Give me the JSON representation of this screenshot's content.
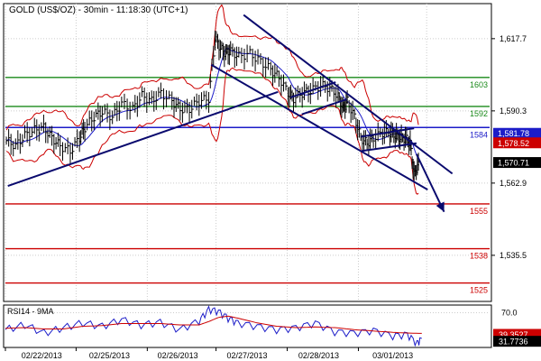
{
  "header": {
    "title": "GOLD (US$/OZ) - 30min - 11:18:30 (UTC+1)"
  },
  "chart_data": [
    {
      "type": "line",
      "title": "GOLD (US$/OZ) - 30min - 11:18:30 (UTC+1)",
      "y_axis": {
        "ticks": [
          "1,617.7",
          "1,590.3",
          "1,562.9",
          "1,535.5"
        ],
        "tick_values": [
          1617.7,
          1590.3,
          1562.9,
          1535.5
        ],
        "ylim": [
          1518,
          1631
        ],
        "position": "right"
      },
      "x_axis": {
        "ticks": [
          "02/22/2013",
          "02/25/2013",
          "02/26/2013",
          "02/27/2013",
          "02/28/2013",
          "03/01/2013"
        ],
        "xlim": [
          0,
          100
        ]
      },
      "horizontal_levels": [
        {
          "label": "1603",
          "value": 1603,
          "color": "#1a8a1a"
        },
        {
          "label": "1592",
          "value": 1592,
          "color": "#1a8a1a"
        },
        {
          "label": "1584",
          "value": 1584,
          "color": "#1c1cc8"
        },
        {
          "label": "1555",
          "value": 1555,
          "color": "#cc0000"
        },
        {
          "label": "1538",
          "value": 1538,
          "color": "#cc0000"
        },
        {
          "label": "1525",
          "value": 1525,
          "color": "#cc0000"
        }
      ],
      "price_tags": [
        {
          "label": "1,581.78",
          "value": 1581.78,
          "color": "#1c1cc8"
        },
        {
          "label": "1,578.52",
          "value": 1578.52,
          "color": "#cc0000"
        },
        {
          "label": "1,570.71",
          "value": 1570.71,
          "color": "#000000"
        }
      ],
      "trendlines": [
        {
          "x": [
            0.5,
            56.3
          ],
          "y": [
            1561.8,
            1597.5
          ]
        },
        {
          "x": [
            49.2,
            92.3
          ],
          "y": [
            1626.7,
            1566.5
          ]
        },
        {
          "x": [
            42.5,
            87.2
          ],
          "y": [
            1607.8,
            1560.4
          ]
        },
        {
          "x": [
            58.9,
            68.2
          ],
          "y": [
            1595.4,
            1601.2
          ]
        },
        {
          "x": [
            61.2,
            70.5
          ],
          "y": [
            1589.0,
            1594.7
          ]
        },
        {
          "x": [
            73.4,
            84.4
          ],
          "y": [
            1580.5,
            1583.7
          ]
        },
        {
          "x": [
            73.6,
            84.9
          ],
          "y": [
            1575.1,
            1578.0
          ]
        }
      ],
      "arrow": {
        "x": [
          84.9,
          90.6
        ],
        "y": [
          1573.9,
          1552.0
        ]
      },
      "price_series": {
        "x": [
          0.2,
          2.1,
          4.0,
          6.0,
          7.9,
          9.6,
          11.3,
          13.4,
          15.3,
          16.4,
          18.3,
          20.0,
          22.1,
          24.0,
          26.3,
          28.2,
          30.2,
          32.1,
          34.4,
          36.1,
          38.0,
          40.0,
          42.0,
          43.3,
          44.4,
          45.5,
          46.5,
          48.2,
          50.5,
          52.7,
          54.8,
          56.5,
          58.4,
          59.5,
          61.3,
          63.0,
          65.1,
          67.0,
          68.7,
          69.7,
          70.6,
          72.1,
          73.4,
          74.7,
          76.0,
          77.9,
          79.4,
          80.5,
          81.5,
          82.6,
          83.6,
          84.4,
          85.3
        ],
        "close": [
          1579,
          1577,
          1581,
          1583,
          1584,
          1580,
          1577,
          1575,
          1580,
          1584,
          1588,
          1590,
          1588,
          1593,
          1591,
          1596,
          1594,
          1597,
          1594,
          1591,
          1591,
          1594,
          1595,
          1618,
          1614,
          1612,
          1613,
          1611,
          1612,
          1609,
          1606,
          1603,
          1597,
          1595,
          1597,
          1598,
          1600,
          1599,
          1596,
          1591,
          1594,
          1588,
          1580,
          1578,
          1580,
          1582,
          1582,
          1581,
          1580,
          1580,
          1578,
          1566,
          1571
        ]
      },
      "bollinger": {
        "upper_color": "#cc0000",
        "lower_color": "#cc0000",
        "mid_color": "#1c1cc8"
      }
    },
    {
      "type": "line",
      "title": "RSI14 - 9MA",
      "y_axis": {
        "ticks": [
          "70.0"
        ],
        "tick_values": [
          70
        ],
        "ylim": [
          20,
          80
        ]
      },
      "price_tags": [
        {
          "label": "39.3527",
          "value": 39.35,
          "color": "#cc0000"
        },
        {
          "label": "31.7736",
          "value": 31.77,
          "color": "#000000"
        }
      ],
      "series": [
        {
          "name": "RSI14",
          "color": "#1c1cc8",
          "x": [
            0,
            4,
            8,
            12,
            16,
            20,
            24,
            28,
            32,
            36,
            40,
            42,
            44,
            46,
            48,
            52,
            56,
            60,
            64,
            68,
            72,
            76,
            80,
            83,
            85,
            86
          ],
          "y": [
            45,
            52,
            40,
            48,
            55,
            50,
            60,
            52,
            56,
            45,
            58,
            75,
            72,
            62,
            55,
            50,
            45,
            48,
            55,
            42,
            40,
            44,
            36,
            38,
            25,
            31.8
          ]
        },
        {
          "name": "9MA",
          "color": "#cc0000",
          "x": [
            0,
            4,
            8,
            12,
            16,
            20,
            24,
            28,
            32,
            36,
            40,
            42,
            44,
            46,
            48,
            52,
            56,
            60,
            64,
            68,
            72,
            76,
            80,
            83,
            86
          ],
          "y": [
            47,
            48,
            46,
            46,
            50,
            51,
            54,
            54,
            54,
            52,
            52,
            57,
            63,
            65,
            62,
            55,
            50,
            48,
            49,
            48,
            45,
            43,
            41,
            40,
            39.4
          ]
        }
      ]
    }
  ]
}
